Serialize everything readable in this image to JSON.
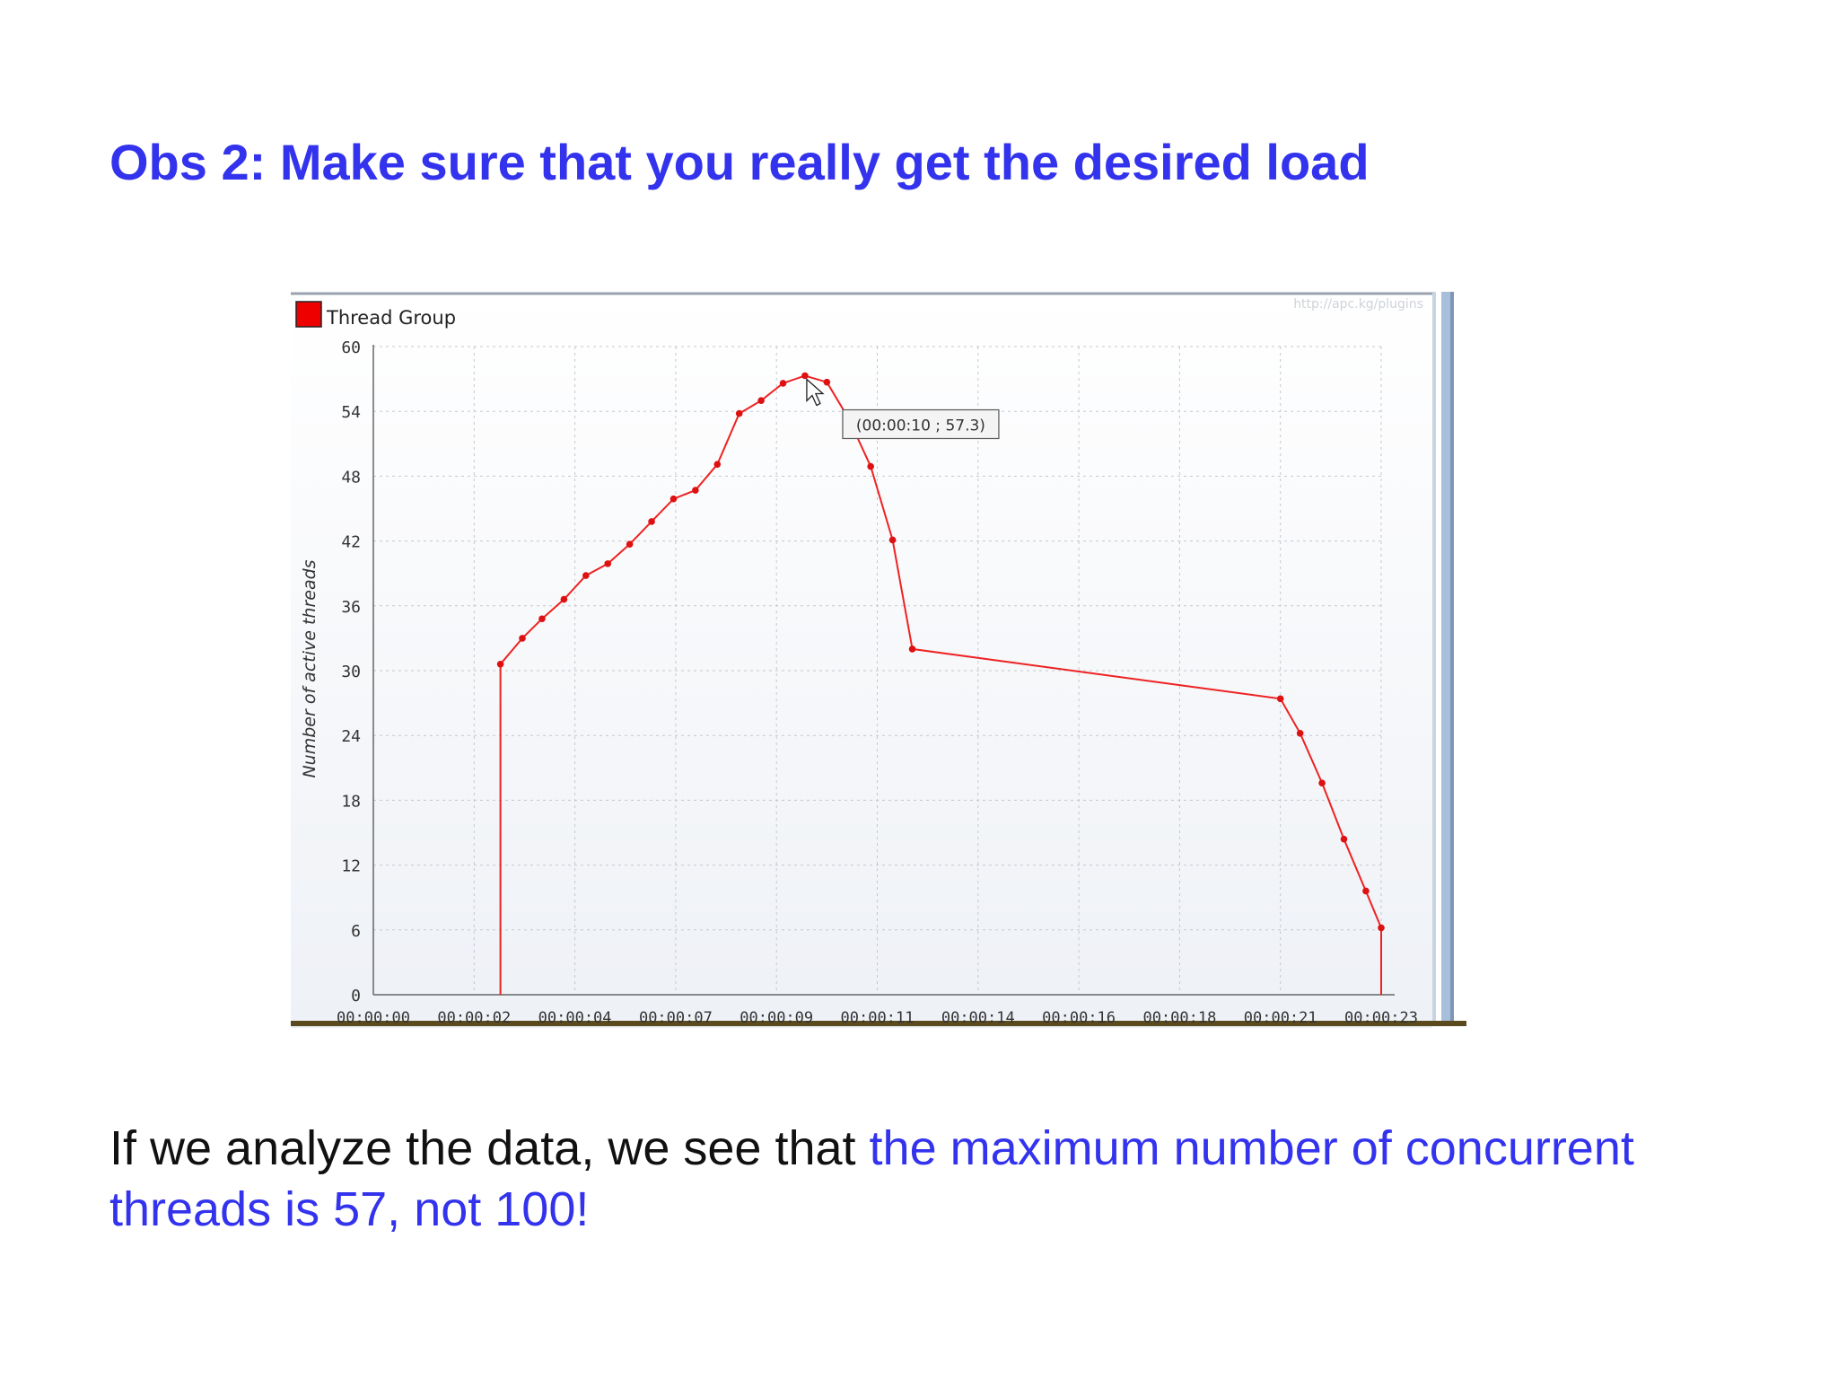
{
  "slide": {
    "title": "Obs 2: Make sure that you really get the desired load",
    "body_plain": "If we analyze the data, we see that ",
    "body_highlight": "the maximum number of concurrent threads is 57, not 100!",
    "title_color": "#3333ee",
    "highlight_color": "#3333ee"
  },
  "chart_data": {
    "type": "line",
    "watermark": "http://apc.kg/plugins",
    "ylabel": "Number of active threads",
    "xlabel": "",
    "ylim": [
      0,
      60
    ],
    "xlim": [
      0,
      23
    ],
    "yticks": [
      0,
      6,
      12,
      18,
      24,
      30,
      36,
      42,
      48,
      54,
      60
    ],
    "xticks": [
      {
        "value": 0,
        "label": "00:00:00"
      },
      {
        "value": 2.3,
        "label": "00:00:02"
      },
      {
        "value": 4.6,
        "label": "00:00:04"
      },
      {
        "value": 6.9,
        "label": "00:00:07"
      },
      {
        "value": 9.2,
        "label": "00:00:09"
      },
      {
        "value": 11.5,
        "label": "00:00:11"
      },
      {
        "value": 13.8,
        "label": "00:00:14"
      },
      {
        "value": 16.1,
        "label": "00:00:16"
      },
      {
        "value": 18.4,
        "label": "00:00:18"
      },
      {
        "value": 20.7,
        "label": "00:00:21"
      },
      {
        "value": 23.0,
        "label": "00:00:23"
      }
    ],
    "grid": true,
    "legend_position": "top-left",
    "series": [
      {
        "name": "Thread Group",
        "color": "#ee2222",
        "points": [
          [
            2.9,
            0
          ],
          [
            2.9,
            30.6
          ],
          [
            3.4,
            33.0
          ],
          [
            3.85,
            34.8
          ],
          [
            4.35,
            36.6
          ],
          [
            4.85,
            38.8
          ],
          [
            5.35,
            39.9
          ],
          [
            5.85,
            41.7
          ],
          [
            6.35,
            43.8
          ],
          [
            6.85,
            45.9
          ],
          [
            7.35,
            46.7
          ],
          [
            7.85,
            49.1
          ],
          [
            8.35,
            53.8
          ],
          [
            8.85,
            55.0
          ],
          [
            9.35,
            56.6
          ],
          [
            9.85,
            57.3
          ],
          [
            10.35,
            56.7
          ],
          [
            10.85,
            53.3
          ],
          [
            11.35,
            48.9
          ],
          [
            11.85,
            42.1
          ],
          [
            12.3,
            32.0
          ],
          [
            20.7,
            27.4
          ],
          [
            21.15,
            24.2
          ],
          [
            21.65,
            19.6
          ],
          [
            22.15,
            14.4
          ],
          [
            22.65,
            9.6
          ],
          [
            23.0,
            6.2
          ],
          [
            23.0,
            0
          ]
        ]
      }
    ],
    "tooltip": {
      "text": "(00:00:10 ; 57.3)",
      "x": 9.85,
      "y": 57.3
    }
  }
}
